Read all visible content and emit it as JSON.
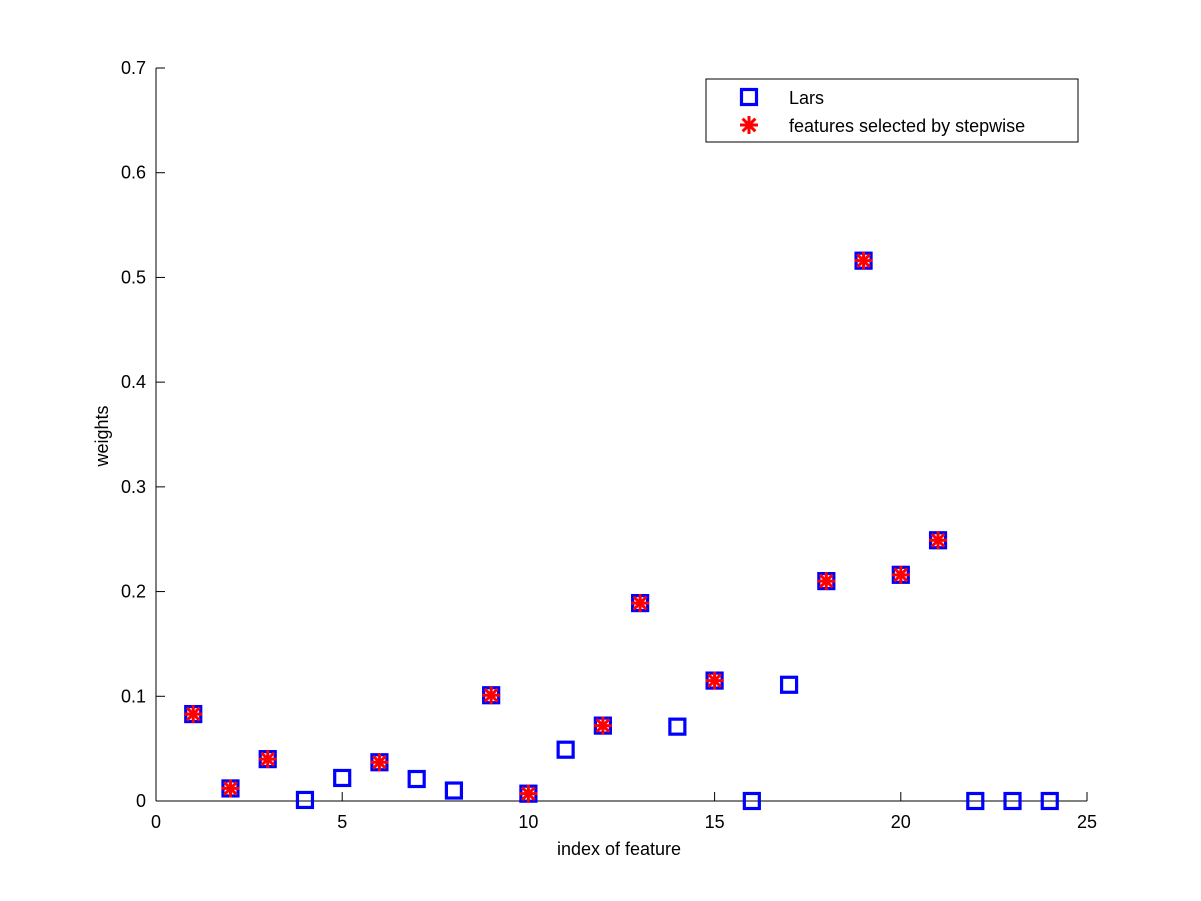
{
  "chart_data": {
    "type": "scatter",
    "xlabel": "index of feature",
    "ylabel": "weights",
    "xlim": [
      0,
      25
    ],
    "ylim": [
      0,
      0.7
    ],
    "xticks": [
      "0",
      "5",
      "10",
      "15",
      "20",
      "25"
    ],
    "yticks": [
      "0",
      "0.1",
      "0.2",
      "0.3",
      "0.4",
      "0.5",
      "0.6",
      "0.7"
    ],
    "grid": false,
    "legend_position": "top-right",
    "series": [
      {
        "name": "Lars",
        "marker": "square",
        "color": "#0000FF",
        "x": [
          1,
          2,
          3,
          4,
          5,
          6,
          7,
          8,
          9,
          10,
          11,
          12,
          13,
          14,
          15,
          16,
          17,
          18,
          19,
          20,
          21,
          22,
          23,
          24
        ],
        "y": [
          0.083,
          0.012,
          0.04,
          0.001,
          0.022,
          0.037,
          0.021,
          0.01,
          0.101,
          0.007,
          0.049,
          0.072,
          0.189,
          0.071,
          0.115,
          0.0,
          0.111,
          0.21,
          0.516,
          0.216,
          0.249,
          0.0,
          0.0,
          0.0
        ]
      },
      {
        "name": "features selected by stepwise",
        "marker": "asterisk",
        "color": "#FF0000",
        "x": [
          1,
          2,
          3,
          6,
          9,
          10,
          12,
          13,
          15,
          18,
          19,
          20,
          21
        ],
        "y": [
          0.083,
          0.012,
          0.04,
          0.037,
          0.101,
          0.007,
          0.072,
          0.189,
          0.115,
          0.21,
          0.516,
          0.216,
          0.249
        ]
      }
    ]
  }
}
